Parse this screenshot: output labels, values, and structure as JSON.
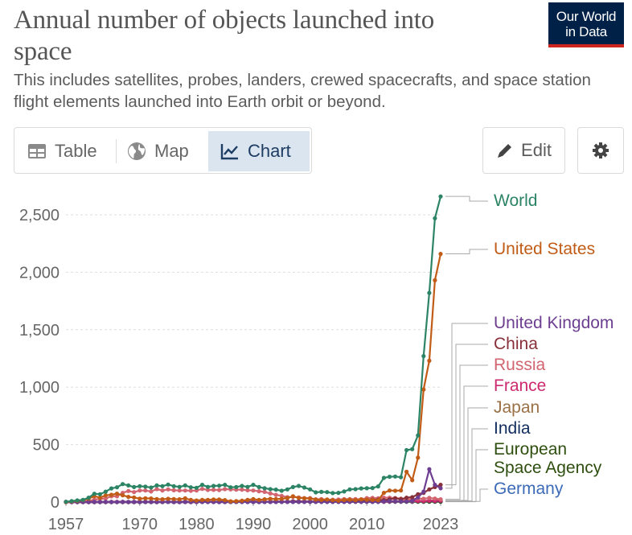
{
  "header": {
    "title": "Annual number of objects launched into space",
    "subtitle": "This includes satellites, probes, landers, crewed spacecrafts, and space station flight elements launched into Earth orbit or beyond.",
    "logo_line1": "Our World",
    "logo_line2": "in Data"
  },
  "tabs": [
    {
      "label": "Table",
      "icon": "table-icon",
      "active": false
    },
    {
      "label": "Map",
      "icon": "globe-icon",
      "active": false
    },
    {
      "label": "Chart",
      "icon": "line-chart-icon",
      "active": true
    }
  ],
  "toolbar": {
    "edit_label": "Edit",
    "edit_icon": "pencil-icon",
    "settings_icon": "gear-icon"
  },
  "colors": {
    "tab_active_bg": "#dbe5f0",
    "logo_bg": "#002147",
    "logo_accent": "#ce261e"
  },
  "chart_data": {
    "type": "line",
    "title": "Annual number of objects launched into space",
    "subtitle": "This includes satellites, probes, landers, crewed spacecrafts, and space station flight elements launched into Earth orbit or beyond.",
    "xlabel": "",
    "ylabel": "",
    "xlim": [
      1957,
      2023
    ],
    "ylim": [
      0,
      2650
    ],
    "x_ticks": [
      "1957",
      "1970",
      "1980",
      "1990",
      "2000",
      "2010",
      "2023"
    ],
    "y_ticks": [
      "0",
      "500",
      "1,000",
      "1,500",
      "2,000",
      "2,500"
    ],
    "y_tick_values": [
      0,
      500,
      1000,
      1500,
      2000,
      2500
    ],
    "grid": "horizontal dashed",
    "legend": "right (line labels)",
    "x": [
      1957,
      1958,
      1959,
      1960,
      1961,
      1962,
      1963,
      1964,
      1965,
      1966,
      1967,
      1968,
      1969,
      1970,
      1971,
      1972,
      1973,
      1974,
      1975,
      1976,
      1977,
      1978,
      1979,
      1980,
      1981,
      1982,
      1983,
      1984,
      1985,
      1986,
      1987,
      1988,
      1989,
      1990,
      1991,
      1992,
      1993,
      1994,
      1995,
      1996,
      1997,
      1998,
      1999,
      2000,
      2001,
      2002,
      2003,
      2004,
      2005,
      2006,
      2007,
      2008,
      2009,
      2010,
      2011,
      2012,
      2013,
      2014,
      2015,
      2016,
      2017,
      2018,
      2019,
      2020,
      2021,
      2022,
      2023
    ],
    "series": [
      {
        "name": "World",
        "color": "#2c8465",
        "values": [
          2,
          8,
          14,
          19,
          38,
          72,
          68,
          90,
          118,
          128,
          156,
          144,
          130,
          138,
          134,
          126,
          144,
          138,
          152,
          138,
          132,
          144,
          128,
          124,
          150,
          132,
          140,
          142,
          150,
          128,
          130,
          140,
          132,
          150,
          130,
          120,
          112,
          108,
          98,
          110,
          130,
          140,
          126,
          110,
          84,
          88,
          86,
          78,
          80,
          92,
          110,
          112,
          118,
          120,
          122,
          136,
          210,
          220,
          222,
          216,
          452,
          460,
          580,
          1270,
          1820,
          2470,
          2660
        ]
      },
      {
        "name": "United States",
        "color": "#c15c17",
        "values": [
          0,
          5,
          10,
          16,
          29,
          51,
          38,
          58,
          63,
          73,
          58,
          45,
          40,
          29,
          32,
          31,
          26,
          24,
          28,
          26,
          24,
          32,
          18,
          13,
          18,
          18,
          22,
          22,
          17,
          6,
          8,
          12,
          18,
          26,
          18,
          24,
          28,
          26,
          28,
          34,
          50,
          36,
          32,
          30,
          22,
          18,
          22,
          16,
          12,
          18,
          20,
          16,
          24,
          20,
          18,
          16,
          80,
          100,
          98,
          100,
          264,
          190,
          386,
          980,
          1230,
          1930,
          2160
        ]
      },
      {
        "name": "United Kingdom",
        "color": "#6d3e91",
        "values": [
          0,
          0,
          0,
          0,
          0,
          1,
          0,
          1,
          0,
          0,
          1,
          0,
          1,
          0,
          1,
          0,
          0,
          1,
          1,
          0,
          0,
          1,
          1,
          0,
          1,
          0,
          0,
          0,
          0,
          1,
          0,
          1,
          1,
          1,
          0,
          0,
          0,
          0,
          1,
          1,
          1,
          2,
          1,
          2,
          1,
          1,
          1,
          1,
          1,
          1,
          1,
          2,
          1,
          2,
          1,
          1,
          5,
          8,
          6,
          5,
          5,
          10,
          40,
          90,
          286,
          150,
          120
        ]
      },
      {
        "name": "China",
        "color": "#883039",
        "values": [
          0,
          0,
          0,
          0,
          0,
          0,
          0,
          0,
          0,
          0,
          0,
          0,
          0,
          1,
          1,
          0,
          0,
          0,
          3,
          2,
          0,
          1,
          0,
          0,
          3,
          1,
          1,
          2,
          1,
          2,
          2,
          4,
          2,
          5,
          1,
          3,
          1,
          5,
          2,
          2,
          6,
          6,
          4,
          5,
          2,
          6,
          8,
          10,
          6,
          8,
          10,
          12,
          8,
          16,
          20,
          20,
          16,
          24,
          32,
          24,
          38,
          42,
          68,
          80,
          110,
          130,
          150
        ]
      },
      {
        "name": "Russia",
        "color": "#d26570",
        "values": [
          2,
          3,
          3,
          3,
          8,
          20,
          28,
          31,
          50,
          50,
          80,
          96,
          86,
          100,
          100,
          92,
          112,
          100,
          110,
          102,
          100,
          100,
          98,
          100,
          114,
          105,
          106,
          104,
          112,
          110,
          108,
          108,
          102,
          100,
          94,
          88,
          74,
          62,
          54,
          42,
          44,
          40,
          34,
          34,
          24,
          26,
          20,
          20,
          22,
          26,
          26,
          26,
          24,
          34,
          36,
          32,
          38,
          38,
          34,
          30,
          22,
          24,
          30,
          28,
          36,
          30,
          24
        ]
      },
      {
        "name": "France",
        "color": "#cc2a6e",
        "values": [
          0,
          0,
          0,
          0,
          0,
          0,
          0,
          0,
          1,
          1,
          2,
          0,
          0,
          1,
          1,
          2,
          0,
          1,
          2,
          0,
          0,
          0,
          0,
          0,
          1,
          1,
          1,
          1,
          1,
          2,
          2,
          2,
          3,
          4,
          3,
          2,
          3,
          3,
          4,
          3,
          4,
          3,
          3,
          4,
          4,
          3,
          2,
          3,
          2,
          2,
          2,
          3,
          2,
          3,
          3,
          4,
          3,
          5,
          5,
          6,
          8,
          8,
          10,
          10,
          12,
          10,
          12
        ]
      },
      {
        "name": "Japan",
        "color": "#9a7045",
        "values": [
          0,
          0,
          0,
          0,
          0,
          0,
          0,
          0,
          0,
          0,
          0,
          0,
          0,
          1,
          2,
          2,
          1,
          1,
          2,
          2,
          3,
          4,
          2,
          3,
          4,
          3,
          3,
          4,
          3,
          4,
          4,
          4,
          4,
          5,
          3,
          3,
          3,
          4,
          3,
          3,
          4,
          4,
          3,
          3,
          3,
          5,
          4,
          2,
          4,
          6,
          5,
          3,
          5,
          6,
          5,
          6,
          4,
          6,
          7,
          6,
          8,
          6,
          10,
          8,
          12,
          14,
          14
        ]
      },
      {
        "name": "India",
        "color": "#112d5e",
        "values": [
          0,
          0,
          0,
          0,
          0,
          0,
          0,
          0,
          0,
          0,
          0,
          0,
          0,
          0,
          0,
          0,
          0,
          0,
          1,
          0,
          0,
          0,
          1,
          1,
          2,
          1,
          1,
          0,
          0,
          0,
          1,
          1,
          0,
          0,
          0,
          1,
          1,
          1,
          1,
          1,
          1,
          1,
          2,
          1,
          2,
          2,
          2,
          2,
          3,
          2,
          3,
          5,
          4,
          5,
          5,
          5,
          5,
          5,
          6,
          8,
          8,
          6,
          8,
          6,
          10,
          8,
          10
        ]
      },
      {
        "name": "European Space Agency",
        "color": "#2f4f10",
        "values": [
          0,
          0,
          0,
          0,
          0,
          0,
          0,
          0,
          0,
          0,
          0,
          0,
          0,
          0,
          0,
          0,
          0,
          0,
          1,
          0,
          1,
          1,
          0,
          1,
          1,
          1,
          1,
          1,
          1,
          1,
          1,
          2,
          2,
          2,
          2,
          2,
          2,
          2,
          2,
          2,
          2,
          2,
          2,
          2,
          2,
          2,
          2,
          3,
          2,
          3,
          2,
          3,
          3,
          3,
          3,
          3,
          3,
          3,
          3,
          3,
          3,
          2,
          3,
          3,
          3,
          3,
          3
        ]
      },
      {
        "name": "Germany",
        "color": "#3c6ab7",
        "values": [
          0,
          0,
          0,
          0,
          0,
          0,
          0,
          0,
          0,
          0,
          0,
          0,
          1,
          0,
          1,
          1,
          0,
          1,
          1,
          1,
          0,
          1,
          0,
          1,
          0,
          1,
          1,
          0,
          1,
          1,
          1,
          1,
          1,
          2,
          2,
          1,
          1,
          2,
          1,
          2,
          2,
          2,
          2,
          2,
          1,
          2,
          1,
          2,
          1,
          2,
          2,
          2,
          2,
          2,
          3,
          3,
          2,
          3,
          3,
          3,
          2,
          3,
          4,
          3,
          5,
          4,
          5
        ]
      }
    ]
  }
}
